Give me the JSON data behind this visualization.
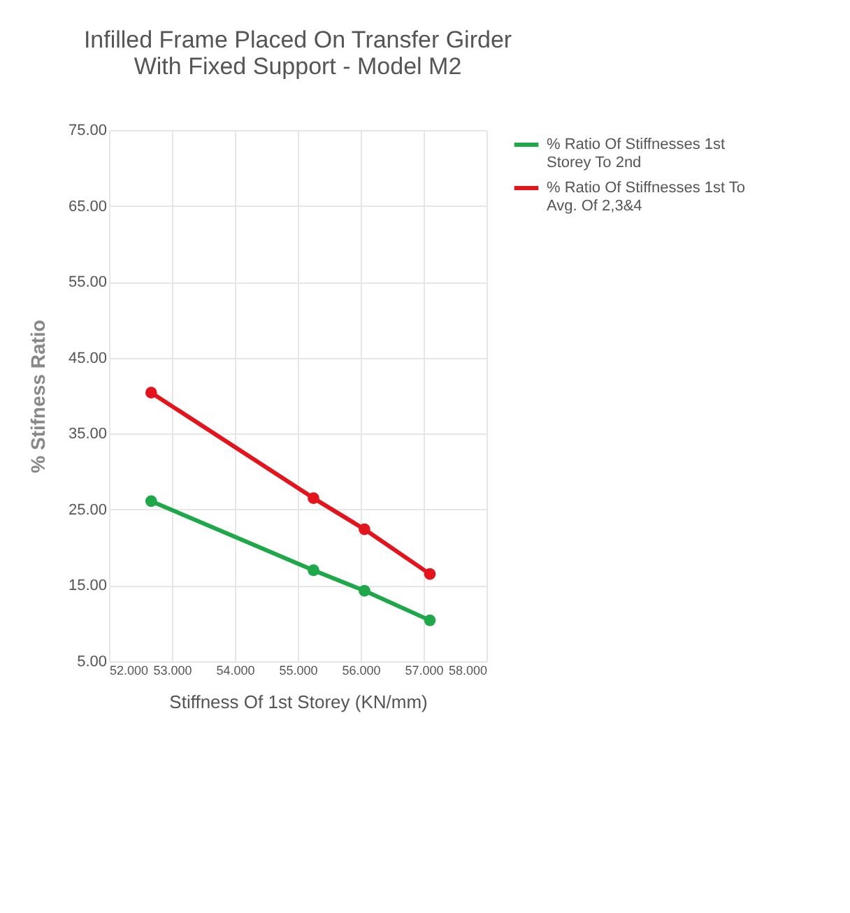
{
  "chart_data": {
    "type": "line",
    "title": [
      "Infilled Frame Placed On Transfer Girder",
      "With Fixed Support - Model M2"
    ],
    "xlabel": "Stiffness Of 1st Storey (KN/mm)",
    "ylabel": "% Stifness Ratio",
    "x": [
      52.67,
      55.25,
      56.06,
      57.1
    ],
    "series": [
      {
        "name": "% Ratio Of Stiffnesses 1st Storey To 2nd",
        "color": "#1ea84a",
        "values": [
          26.1,
          17.0,
          14.3,
          10.4
        ]
      },
      {
        "name": "% Ratio Of Stiffnesses 1st To Avg. Of 2,3&4",
        "color": "#e3141c",
        "values": [
          40.4,
          26.5,
          22.4,
          16.5
        ]
      }
    ],
    "xlim": [
      52,
      58
    ],
    "xticks": [
      {
        "value": 52,
        "label": "52.000"
      },
      {
        "value": 53,
        "label": "53.000"
      },
      {
        "value": 54,
        "label": "54.000"
      },
      {
        "value": 55,
        "label": "55.000"
      },
      {
        "value": 56,
        "label": "56.000"
      },
      {
        "value": 57,
        "label": "57.000"
      },
      {
        "value": 58,
        "label": "58.000"
      }
    ],
    "ylim": [
      5,
      75
    ],
    "yticks": [
      {
        "value": 5,
        "label": "5.00"
      },
      {
        "value": 15,
        "label": "15.00"
      },
      {
        "value": 25,
        "label": "25.00"
      },
      {
        "value": 35,
        "label": "35.00"
      },
      {
        "value": 45,
        "label": "45.00"
      },
      {
        "value": 55,
        "label": "55.00"
      },
      {
        "value": 65,
        "label": "65.00"
      },
      {
        "value": 75,
        "label": "75.00"
      }
    ],
    "grid": true,
    "legend": "right",
    "marker": "circle",
    "line_style": "solid"
  }
}
